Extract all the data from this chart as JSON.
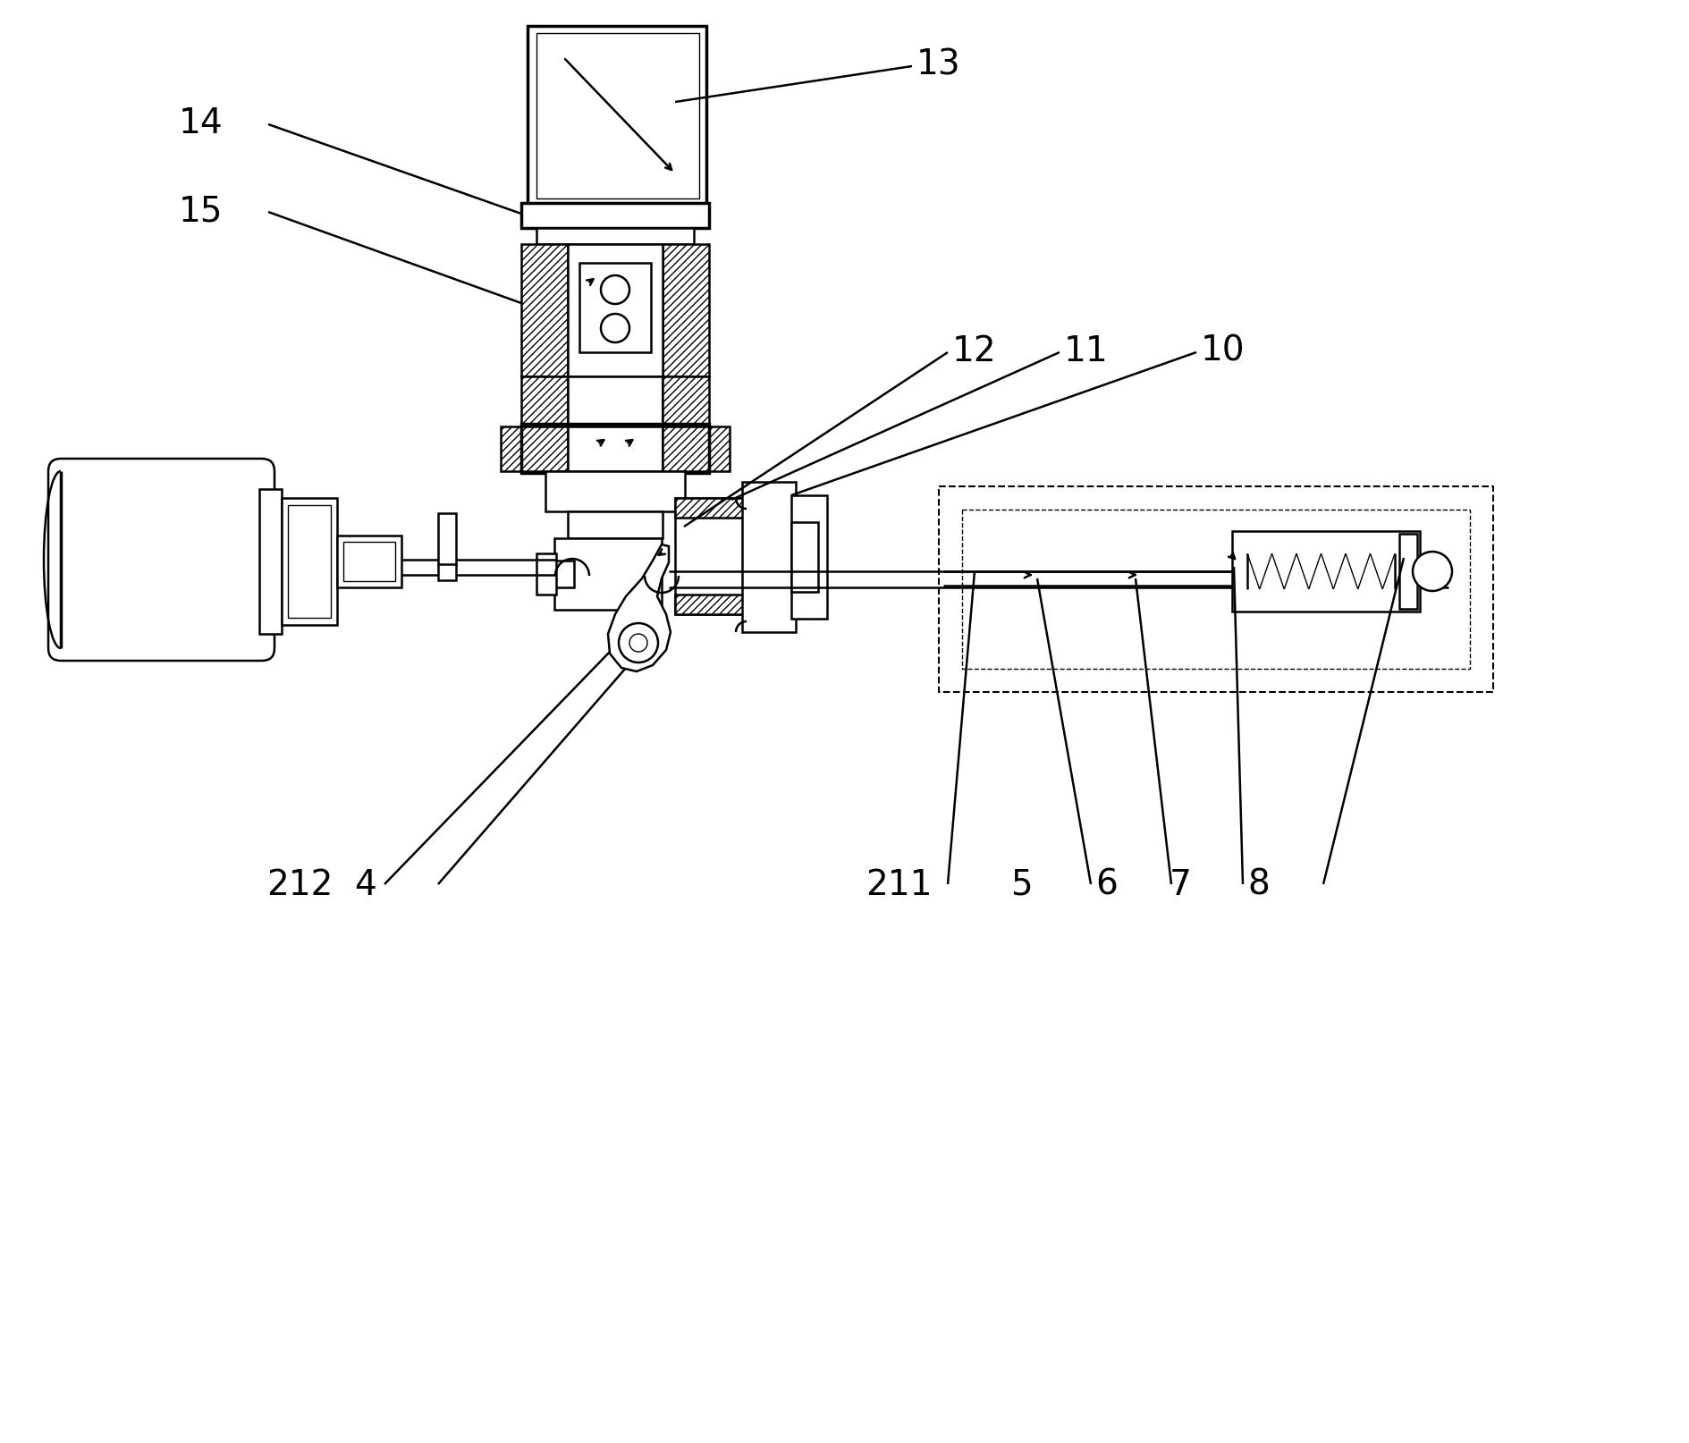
{
  "bg": "#ffffff",
  "lc": "#000000",
  "fig_w": 18.9,
  "fig_h": 16.15,
  "dpi": 100,
  "lw": 1.8,
  "lw_thin": 1.0,
  "lw_thick": 2.5,
  "lw_dash": 1.5,
  "label_fs": 28,
  "hatch_dense": "////",
  "coords": {
    "xlim": [
      0,
      1890
    ],
    "ylim": [
      1615,
      0
    ]
  }
}
